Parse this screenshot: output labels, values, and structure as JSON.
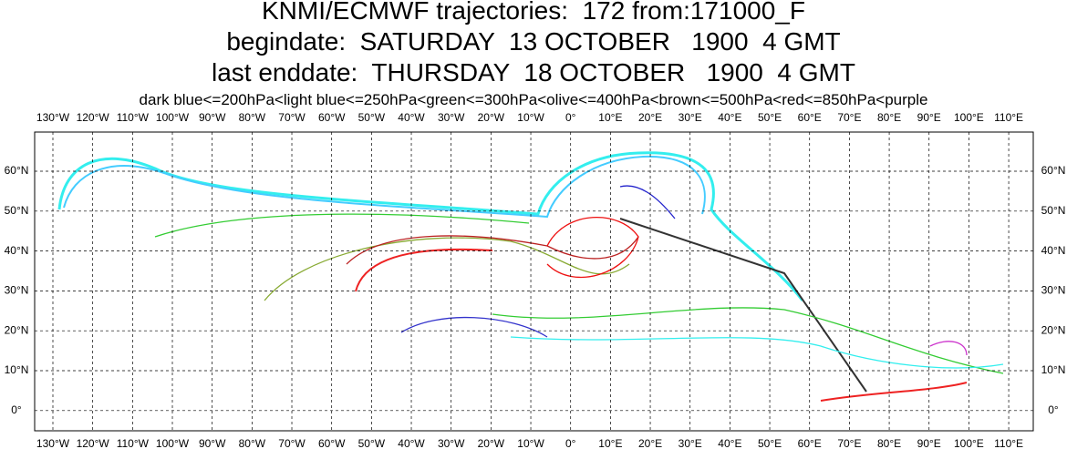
{
  "header": {
    "title_lines": [
      "KNMI/ECMWF trajectories:  172 from:171000_F",
      "begindate:  SATURDAY  13 OCTOBER   1900  4 GMT",
      "last enddate:  THURSDAY  18 OCTOBER   1900  4 GMT"
    ],
    "legend": "dark blue<=200hPa<light blue<=250hPa<green<=300hPa<olive<=400hPa<brown<=500hPa<red<=850hPa<purple"
  },
  "map": {
    "lon_labels": [
      "130°W",
      "120°W",
      "110°W",
      "100°W",
      "90°W",
      "80°W",
      "70°W",
      "60°W",
      "50°W",
      "40°W",
      "30°W",
      "20°W",
      "10°W",
      "0°",
      "10°E",
      "20°E",
      "30°E",
      "40°E",
      "50°E",
      "60°E",
      "70°E",
      "80°E",
      "90°E",
      "100°E",
      "110°E"
    ],
    "lat_labels": [
      "60°N",
      "50°N",
      "40°N",
      "30°N",
      "20°N",
      "10°N",
      "0°"
    ]
  }
}
